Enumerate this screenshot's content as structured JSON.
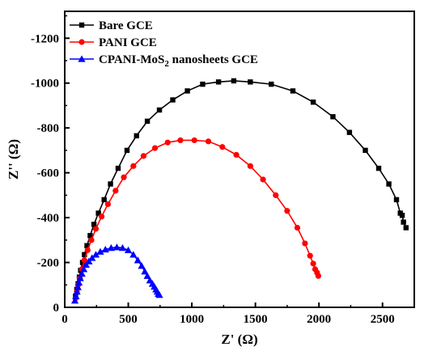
{
  "chart_data": {
    "type": "scatter",
    "title": "",
    "xlabel": "Z' (Ω)",
    "ylabel": "Z'' (Ω)",
    "xlim": [
      0,
      2750
    ],
    "ylim": [
      0,
      -1320
    ],
    "x_ticks": [
      {
        "value": 0,
        "label": "0"
      },
      {
        "value": 500,
        "label": "500"
      },
      {
        "value": 1000,
        "label": "1000"
      },
      {
        "value": 1500,
        "label": "1500"
      },
      {
        "value": 2000,
        "label": "2000"
      },
      {
        "value": 2500,
        "label": "2500"
      }
    ],
    "y_ticks": [
      {
        "value": 0,
        "label": "0"
      },
      {
        "value": -200,
        "label": "-200"
      },
      {
        "value": -400,
        "label": "-400"
      },
      {
        "value": -600,
        "label": "-600"
      },
      {
        "value": -800,
        "label": "-800"
      },
      {
        "value": -1000,
        "label": "-1000"
      },
      {
        "value": -1200,
        "label": "-1200"
      }
    ],
    "grid": false,
    "legend_position": "top-left",
    "series": [
      {
        "name": "Bare GCE",
        "legend_label": {
          "main": "Bare GCE"
        },
        "color": "#000000",
        "marker": "square",
        "x": [
          85,
          95,
          105,
          115,
          125,
          140,
          155,
          175,
          200,
          230,
          265,
          310,
          360,
          420,
          490,
          565,
          650,
          745,
          850,
          965,
          1085,
          1210,
          1330,
          1460,
          1625,
          1795,
          1955,
          2110,
          2240,
          2365,
          2470,
          2550,
          2610,
          2640,
          2655,
          2665,
          2685
        ],
        "y": [
          -50,
          -80,
          -105,
          -135,
          -165,
          -200,
          -235,
          -275,
          -320,
          -370,
          -420,
          -480,
          -550,
          -620,
          -700,
          -765,
          -830,
          -880,
          -925,
          -965,
          -995,
          -1005,
          -1010,
          -1005,
          -995,
          -965,
          -915,
          -850,
          -780,
          -700,
          -620,
          -550,
          -480,
          -420,
          -410,
          -380,
          -355
        ]
      },
      {
        "name": "PANI GCE",
        "legend_label": {
          "main": "PANI GCE"
        },
        "color": "#ff0000",
        "marker": "circle",
        "x": [
          85,
          95,
          105,
          120,
          135,
          155,
          180,
          210,
          245,
          290,
          340,
          400,
          465,
          540,
          620,
          710,
          810,
          910,
          1020,
          1130,
          1240,
          1350,
          1460,
          1560,
          1660,
          1750,
          1830,
          1890,
          1930,
          1955,
          1970,
          1985,
          1995
        ],
        "y": [
          -40,
          -70,
          -100,
          -130,
          -170,
          -210,
          -255,
          -300,
          -350,
          -405,
          -460,
          -520,
          -580,
          -630,
          -675,
          -710,
          -735,
          -745,
          -745,
          -740,
          -715,
          -680,
          -630,
          -570,
          -500,
          -430,
          -355,
          -285,
          -230,
          -195,
          -170,
          -155,
          -140
        ]
      },
      {
        "name": "CPANI-MoS₂ nanosheets GCE",
        "legend_label": {
          "main": "CPANI-MoS",
          "sub": "2",
          "rest": " nanosheets GCE"
        },
        "color": "#0000ff",
        "marker": "triangle",
        "x": [
          80,
          88,
          96,
          104,
          112,
          122,
          135,
          150,
          168,
          190,
          215,
          245,
          280,
          320,
          365,
          410,
          455,
          500,
          540,
          575,
          605,
          630,
          650,
          670,
          690,
          705,
          718,
          728,
          737,
          745
        ],
        "y": [
          -30,
          -50,
          -70,
          -90,
          -110,
          -130,
          -150,
          -170,
          -190,
          -205,
          -220,
          -235,
          -248,
          -258,
          -265,
          -268,
          -265,
          -255,
          -235,
          -210,
          -185,
          -160,
          -140,
          -120,
          -105,
          -92,
          -80,
          -70,
          -60,
          -55
        ]
      }
    ]
  }
}
